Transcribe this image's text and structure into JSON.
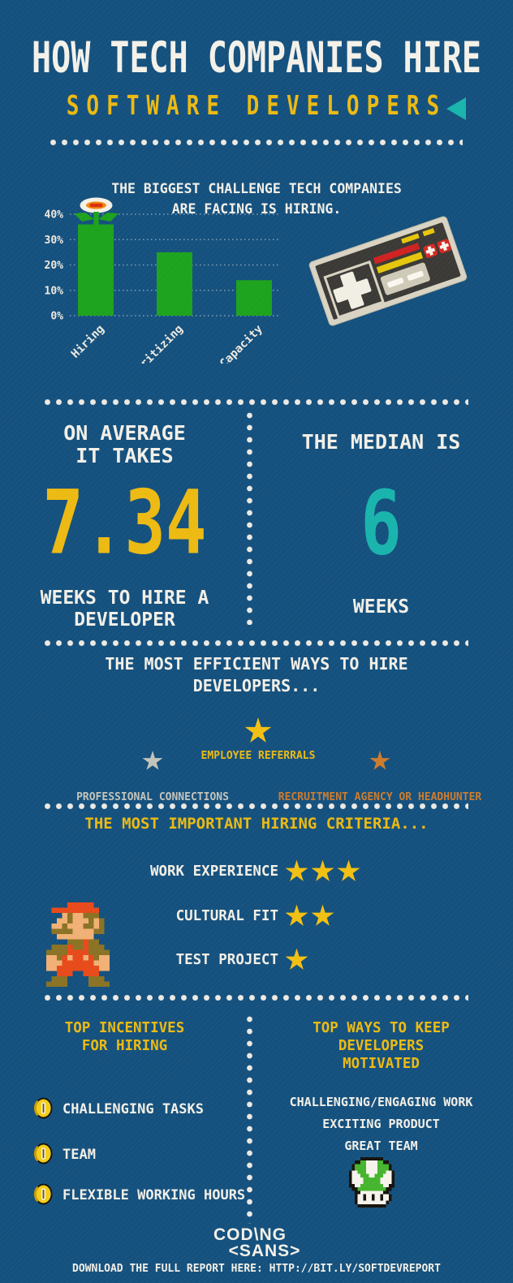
{
  "page": {
    "title": "HOW TECH COMPANIES HIRE",
    "subtitle": "SOFTWARE DEVELOPERS",
    "colors": {
      "background": "#15517e",
      "text_white": "#eeeae0",
      "accent_yellow": "#ecba12",
      "accent_teal": "#19b4ac",
      "bar_green": "#1da31d",
      "star_gold": "#f2c013",
      "star_silver": "#c2c4bc",
      "star_bronze": "#cc7c2e"
    },
    "icons": {
      "subtitle_marker": "teal-left-triangle",
      "decorations": [
        "fire-flower",
        "nes-controller",
        "mario",
        "one-up-mushroom",
        "coin"
      ]
    }
  },
  "challenge": {
    "heading_line1": "THE BIGGEST CHALLENGE TECH COMPANIES",
    "heading_line2": "ARE FACING IS HIRING."
  },
  "chart_data": {
    "type": "bar",
    "title": "THE BIGGEST CHALLENGE TECH COMPANIES ARE FACING IS HIRING.",
    "categories": [
      "Hiring",
      "Prioritizing",
      "Capacity"
    ],
    "values": [
      36,
      25,
      14
    ],
    "xlabel": "",
    "ylabel": "",
    "ylim": [
      0,
      40
    ],
    "yticks": [
      "0%",
      "10%",
      "20%",
      "30%",
      "40%"
    ],
    "grid": true,
    "legend": false
  },
  "stats": {
    "left": {
      "intro_line1": "ON AVERAGE",
      "intro_line2": "IT TAKES",
      "value": "7.34",
      "caption_line1": "WEEKS TO HIRE A",
      "caption_line2": "DEVELOPER"
    },
    "right": {
      "intro": "THE MEDIAN IS",
      "value": "6",
      "caption": "WEEKS"
    }
  },
  "efficient_ways": {
    "heading_line1": "THE MOST EFFICIENT WAYS TO HIRE",
    "heading_line2": "DEVELOPERS...",
    "items": [
      {
        "rank": 1,
        "medal": "gold",
        "label": "EMPLOYEE REFERRALS"
      },
      {
        "rank": 2,
        "medal": "silver",
        "label": "PROFESSIONAL CONNECTIONS"
      },
      {
        "rank": 3,
        "medal": "bronze",
        "label": "RECRUITMENT AGENCY OR HEADHUNTER"
      }
    ]
  },
  "criteria": {
    "heading": "THE MOST IMPORTANT HIRING CRITERIA...",
    "items": [
      {
        "label": "WORK EXPERIENCE",
        "stars": 3
      },
      {
        "label": "CULTURAL FIT",
        "stars": 2
      },
      {
        "label": "TEST PROJECT",
        "stars": 1
      }
    ]
  },
  "incentives": {
    "heading_line1": "TOP INCENTIVES",
    "heading_line2": "FOR HIRING",
    "items": [
      "CHALLENGING TASKS",
      "TEAM",
      "FLEXIBLE WORKING HOURS"
    ]
  },
  "motivators": {
    "heading_line1": "TOP WAYS TO KEEP",
    "heading_line2": "DEVELOPERS",
    "heading_line3": "MOTIVATED",
    "items": [
      "CHALLENGING/ENGAGING WORK",
      "EXCITING PRODUCT",
      "GREAT TEAM"
    ]
  },
  "footer": {
    "logo_line1": "COD\\NG",
    "logo_line2": "<SANS>",
    "download_text": "DOWNLOAD THE FULL REPORT HERE: HTTP://BIT.LY/SOFTDEVREPORT"
  }
}
